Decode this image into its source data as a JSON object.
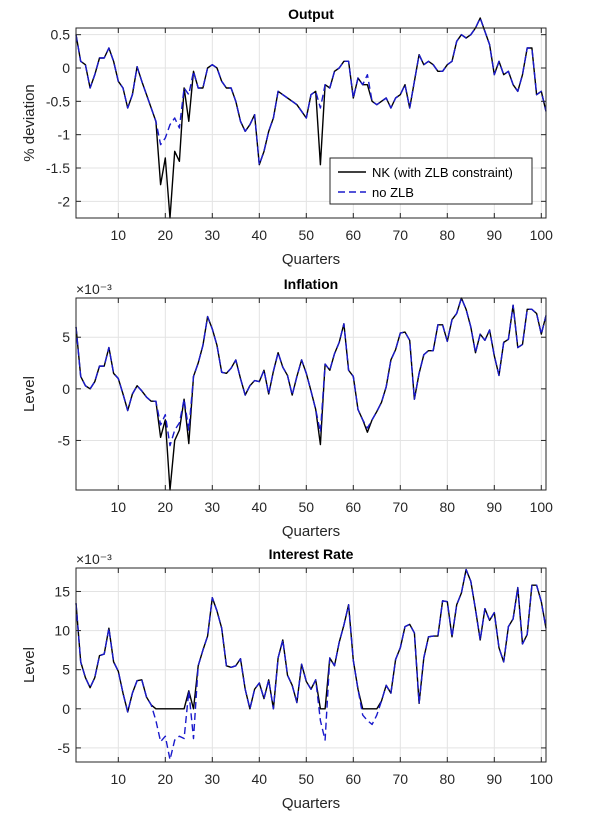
{
  "chart_data": [
    {
      "type": "line",
      "title": "Output",
      "xlabel": "Quarters",
      "ylabel": "% deviation",
      "exponent_label": "",
      "xlim": [
        1,
        101
      ],
      "ylim": [
        -2.25,
        0.6
      ],
      "xticks": [
        10,
        20,
        30,
        40,
        50,
        60,
        70,
        80,
        90,
        100
      ],
      "yticks": [
        -2,
        -1.5,
        -1,
        -0.5,
        0,
        0.5
      ],
      "ytick_labels": [
        "-2",
        "-1.5",
        "-1",
        "-0.5",
        "0",
        "0.5"
      ],
      "grid": true,
      "legend": {
        "placement": "bottom-right",
        "entries": [
          "NK (with ZLB constraint)",
          "no ZLB"
        ]
      },
      "series": [
        {
          "name": "NK (with ZLB constraint)",
          "color": "#000000",
          "style": "solid",
          "y": [
            0.5,
            0.1,
            0.05,
            -0.3,
            -0.1,
            0.15,
            0.15,
            0.3,
            0.1,
            -0.2,
            -0.3,
            -0.6,
            -0.4,
            0.02,
            -0.2,
            -0.4,
            -0.6,
            -0.8,
            -1.75,
            -1.35,
            -2.25,
            -1.25,
            -1.4,
            -0.3,
            -0.8,
            -0.05,
            -0.3,
            -0.3,
            0,
            0.05,
            0,
            -0.2,
            -0.3,
            -0.3,
            -0.5,
            -0.8,
            -0.95,
            -0.85,
            -0.7,
            -1.45,
            -1.25,
            -0.95,
            -0.75,
            -0.35,
            -0.4,
            -0.45,
            -0.5,
            -0.55,
            -0.65,
            -0.75,
            -0.4,
            -0.35,
            -1.45,
            -0.25,
            -0.3,
            -0.05,
            0,
            0.1,
            0.1,
            -0.45,
            -0.15,
            -0.25,
            -0.25,
            -0.5,
            -0.55,
            -0.5,
            -0.45,
            -0.6,
            -0.45,
            -0.4,
            -0.25,
            -0.6,
            -0.2,
            0.2,
            0.05,
            0.1,
            0.05,
            -0.05,
            -0.05,
            0.05,
            0.1,
            0.4,
            0.5,
            0.45,
            0.5,
            0.6,
            0.75,
            0.55,
            0.35,
            -0.1,
            0.1,
            -0.1,
            -0.05,
            -0.25,
            -0.35,
            -0.1,
            0.3,
            0.3,
            -0.4,
            -0.35,
            -0.65
          ]
        },
        {
          "name": "no ZLB",
          "color": "#1a1acc",
          "style": "dashed",
          "y": [
            0.5,
            0.1,
            0.05,
            -0.3,
            -0.1,
            0.15,
            0.15,
            0.3,
            0.1,
            -0.2,
            -0.3,
            -0.6,
            -0.4,
            0.02,
            -0.2,
            -0.4,
            -0.6,
            -0.8,
            -1.15,
            -1.05,
            -0.85,
            -0.75,
            -0.9,
            -0.3,
            -0.4,
            -0.05,
            -0.3,
            -0.3,
            0,
            0.05,
            0,
            -0.2,
            -0.3,
            -0.3,
            -0.5,
            -0.8,
            -0.95,
            -0.85,
            -0.7,
            -1.45,
            -1.25,
            -0.95,
            -0.75,
            -0.35,
            -0.4,
            -0.45,
            -0.5,
            -0.55,
            -0.65,
            -0.75,
            -0.4,
            -0.35,
            -0.6,
            -0.25,
            -0.3,
            -0.05,
            0,
            0.1,
            0.1,
            -0.45,
            -0.15,
            -0.25,
            -0.1,
            -0.5,
            -0.55,
            -0.5,
            -0.45,
            -0.6,
            -0.45,
            -0.4,
            -0.25,
            -0.6,
            -0.2,
            0.2,
            0.05,
            0.1,
            0.05,
            -0.05,
            -0.05,
            0.05,
            0.1,
            0.4,
            0.5,
            0.45,
            0.5,
            0.6,
            0.75,
            0.55,
            0.35,
            -0.1,
            0.1,
            -0.1,
            -0.05,
            -0.25,
            -0.35,
            -0.1,
            0.3,
            0.3,
            -0.4,
            -0.35,
            -0.65
          ]
        }
      ]
    },
    {
      "type": "line",
      "title": "Inflation",
      "xlabel": "Quarters",
      "ylabel": "Level",
      "exponent_label": "×10⁻³",
      "xlim": [
        1,
        101
      ],
      "ylim": [
        -0.0098,
        0.0088
      ],
      "xticks": [
        10,
        20,
        30,
        40,
        50,
        60,
        70,
        80,
        90,
        100
      ],
      "yticks": [
        -0.005,
        0,
        0.005
      ],
      "ytick_labels": [
        "-5",
        "0",
        "5"
      ],
      "grid": true,
      "legend": null,
      "series": [
        {
          "name": "",
          "color": "#000000",
          "style": "solid",
          "y": [
            0.006,
            0.0012,
            0.0003,
            0,
            0.0007,
            0.0022,
            0.0022,
            0.004,
            0.0015,
            0.001,
            -0.0005,
            -0.0021,
            -0.0005,
            0.0003,
            -0.0002,
            -0.0008,
            -0.0012,
            -0.0012,
            -0.0047,
            -0.003,
            -0.0098,
            -0.005,
            -0.004,
            -0.001,
            -0.0053,
            0.0012,
            0.0025,
            0.0042,
            0.007,
            0.0058,
            0.0042,
            0.0016,
            0.0015,
            0.002,
            0.0028,
            0.001,
            -0.0006,
            0.0003,
            0.0008,
            0.0007,
            0.0018,
            -0.0005,
            0.0017,
            0.0035,
            0.0021,
            0.0013,
            -0.0006,
            0.0012,
            0.0028,
            0.0015,
            -0.0002,
            -0.002,
            -0.0054,
            0.0024,
            0.0018,
            0.0034,
            0.0045,
            0.0063,
            0.0018,
            0.0012,
            -0.002,
            -0.003,
            -0.0042,
            -0.003,
            -0.0022,
            -0.0013,
            0.0002,
            0.0028,
            0.0038,
            0.0054,
            0.0055,
            0.0047,
            -0.001,
            0.0015,
            0.0033,
            0.0037,
            0.0037,
            0.0062,
            0.0062,
            0.0046,
            0.0067,
            0.0073,
            0.0088,
            0.0077,
            0.006,
            0.0035,
            0.0053,
            0.0047,
            0.0057,
            0.0032,
            0.0013,
            0.0045,
            0.0048,
            0.0081,
            0.004,
            0.0043,
            0.0077,
            0.0077,
            0.0073,
            0.0053,
            0.0071
          ]
        },
        {
          "name": "",
          "color": "#1a1acc",
          "style": "dashed",
          "y": [
            0.006,
            0.0012,
            0.0003,
            0,
            0.0007,
            0.0022,
            0.0022,
            0.004,
            0.0015,
            0.001,
            -0.0005,
            -0.0021,
            -0.0005,
            0.0003,
            -0.0002,
            -0.0008,
            -0.0012,
            -0.0012,
            -0.0035,
            -0.0025,
            -0.0055,
            -0.004,
            -0.0033,
            -0.001,
            -0.004,
            0.0012,
            0.0025,
            0.0042,
            0.007,
            0.0058,
            0.0042,
            0.0016,
            0.0015,
            0.002,
            0.0028,
            0.001,
            -0.0006,
            0.0003,
            0.0008,
            0.0007,
            0.0018,
            -0.0005,
            0.0017,
            0.0035,
            0.0021,
            0.0013,
            -0.0006,
            0.0012,
            0.0028,
            0.0015,
            -0.0002,
            -0.002,
            -0.0042,
            0.0024,
            0.0018,
            0.0034,
            0.0045,
            0.0063,
            0.0018,
            0.0012,
            -0.002,
            -0.003,
            -0.0038,
            -0.003,
            -0.0022,
            -0.0013,
            0.0002,
            0.0028,
            0.0038,
            0.0054,
            0.0055,
            0.0047,
            -0.001,
            0.0015,
            0.0033,
            0.0037,
            0.0037,
            0.0062,
            0.0062,
            0.0046,
            0.0067,
            0.0073,
            0.0088,
            0.0077,
            0.006,
            0.0035,
            0.0053,
            0.0047,
            0.0057,
            0.0032,
            0.0013,
            0.0045,
            0.0048,
            0.0081,
            0.004,
            0.0043,
            0.0077,
            0.0077,
            0.0073,
            0.0053,
            0.0071
          ]
        }
      ]
    },
    {
      "type": "line",
      "title": "Interest Rate",
      "xlabel": "Quarters",
      "ylabel": "Level",
      "exponent_label": "×10⁻³",
      "xlim": [
        1,
        101
      ],
      "ylim": [
        -0.0068,
        0.018
      ],
      "xticks": [
        10,
        20,
        30,
        40,
        50,
        60,
        70,
        80,
        90,
        100
      ],
      "yticks": [
        -0.005,
        0,
        0.005,
        0.01,
        0.015
      ],
      "ytick_labels": [
        "-5",
        "0",
        "5",
        "10",
        "15"
      ],
      "grid": true,
      "legend": null,
      "series": [
        {
          "name": "",
          "color": "#000000",
          "style": "solid",
          "y": [
            0.0135,
            0.006,
            0.004,
            0.0027,
            0.004,
            0.0068,
            0.007,
            0.0103,
            0.006,
            0.0048,
            0.002,
            -0.0004,
            0.002,
            0.0036,
            0.0037,
            0.0015,
            0.0005,
            0,
            0,
            0,
            0,
            0,
            0,
            0,
            0.0023,
            0,
            0.0055,
            0.0075,
            0.0093,
            0.0142,
            0.0125,
            0.0103,
            0.0055,
            0.0053,
            0.0055,
            0.0064,
            0.0025,
            0,
            0.0025,
            0.0033,
            0.0013,
            0.0037,
            0,
            0.0065,
            0.0088,
            0.0043,
            0.003,
            0.0008,
            0.0057,
            0.0035,
            0.0025,
            0.0037,
            0,
            0,
            0.0065,
            0.0055,
            0.0085,
            0.0107,
            0.0133,
            0.0062,
            0.0025,
            0,
            0,
            0,
            0,
            0.001,
            0.003,
            0.002,
            0.0063,
            0.0078,
            0.0105,
            0.0108,
            0.0097,
            0.0007,
            0.0065,
            0.0092,
            0.0093,
            0.0093,
            0.0138,
            0.0137,
            0.0092,
            0.0133,
            0.0148,
            0.0178,
            0.0163,
            0.0127,
            0.0088,
            0.0128,
            0.0113,
            0.0123,
            0.0078,
            0.006,
            0.0105,
            0.0115,
            0.0155,
            0.0083,
            0.0095,
            0.0158,
            0.0158,
            0.0137,
            0.0103
          ]
        },
        {
          "name": "",
          "color": "#1a1acc",
          "style": "dashed",
          "y": [
            0.0135,
            0.006,
            0.004,
            0.0027,
            0.004,
            0.0068,
            0.007,
            0.0103,
            0.006,
            0.0048,
            0.002,
            -0.0004,
            0.002,
            0.0036,
            0.0037,
            0.0015,
            0.0005,
            -0.0015,
            -0.0042,
            -0.0035,
            -0.0065,
            -0.004,
            -0.0035,
            -0.0038,
            0.0023,
            -0.0038,
            0.0055,
            0.0075,
            0.0093,
            0.0142,
            0.0125,
            0.0103,
            0.0055,
            0.0053,
            0.0055,
            0.0064,
            0.0025,
            0,
            0.0025,
            0.0033,
            0.0013,
            0.0037,
            0,
            0.0065,
            0.0088,
            0.0043,
            0.003,
            0.0008,
            0.0057,
            0.0035,
            0.0025,
            0.0037,
            -0.0015,
            -0.004,
            0.0065,
            0.0055,
            0.0085,
            0.0107,
            0.0133,
            0.0062,
            0.0025,
            -0.0008,
            -0.0015,
            -0.002,
            -0.0008,
            0.001,
            0.003,
            0.002,
            0.0063,
            0.0078,
            0.0105,
            0.0108,
            0.0097,
            0.0007,
            0.0065,
            0.0092,
            0.0093,
            0.0093,
            0.0138,
            0.0137,
            0.0092,
            0.0133,
            0.0148,
            0.0178,
            0.0163,
            0.0127,
            0.0088,
            0.0128,
            0.0113,
            0.0123,
            0.0078,
            0.006,
            0.0105,
            0.0115,
            0.0155,
            0.0083,
            0.0095,
            0.0158,
            0.0158,
            0.0137,
            0.0103
          ]
        }
      ]
    }
  ]
}
